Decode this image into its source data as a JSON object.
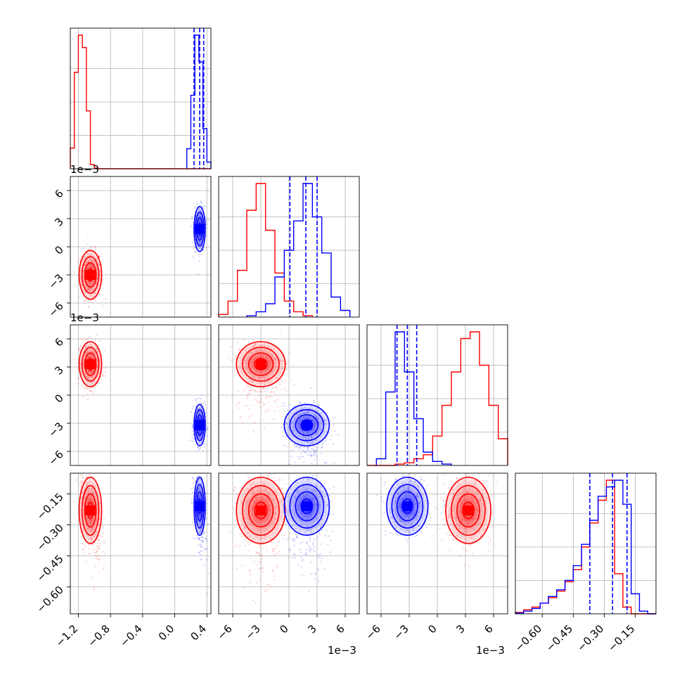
{
  "colors": {
    "series_a": "#ff0000",
    "series_b": "#0000ff",
    "grid": "#b0b0b0"
  },
  "offset_labels": {
    "row1_y": "1e−3",
    "row2_y": "1e−3",
    "col1_x": "1e−3",
    "col2_x": "1e−3"
  },
  "chart_data": {
    "type": "scatter",
    "subtype": "corner-plot",
    "title": "",
    "n_parameters": 4,
    "grid": true,
    "parameters": [
      {
        "index": 0,
        "range": [
          -1.3,
          0.45
        ],
        "ticks": [
          -1.2,
          -0.8,
          -0.4,
          0.0,
          0.4
        ],
        "tick_labels": [
          "−1.2",
          "−0.8",
          "−0.4",
          "0.0",
          "0.4"
        ],
        "label": ""
      },
      {
        "index": 1,
        "range": [
          -0.0075,
          0.0075
        ],
        "ticks": [
          -0.006,
          -0.003,
          0,
          0.003,
          0.006
        ],
        "tick_labels": [
          "−6",
          "−3",
          "0",
          "3",
          "6"
        ],
        "scale_label": "1e−3",
        "label": ""
      },
      {
        "index": 2,
        "range": [
          -0.0075,
          0.0075
        ],
        "ticks": [
          -0.006,
          -0.003,
          0,
          0.003,
          0.006
        ],
        "tick_labels": [
          "−6",
          "−3",
          "0",
          "3",
          "6"
        ],
        "scale_label": "1e−3",
        "label": ""
      },
      {
        "index": 3,
        "range": [
          -0.73,
          -0.05
        ],
        "ticks": [
          -0.6,
          -0.45,
          -0.3,
          -0.15
        ],
        "tick_labels": [
          "−0.60",
          "−0.45",
          "−0.30",
          "−0.15"
        ],
        "label": ""
      }
    ],
    "series": [
      {
        "color": "#ff0000",
        "means": [
          -1.05,
          -0.003,
          0.0033,
          -0.23
        ],
        "stds": [
          0.07,
          0.0013,
          0.0012,
          0.08
        ],
        "histograms": [
          {
            "bins": [
              -1.3,
              -1.25,
              -1.2,
              -1.15,
              -1.1,
              -1.05,
              -1.0,
              -0.95,
              -0.9,
              -0.85,
              -0.8,
              -0.75,
              -0.7,
              -0.65,
              0.45
            ],
            "counts": [
              0.15,
              0.7,
              0.97,
              0.88,
              0.42,
              0.03,
              0.005,
              0,
              0,
              0,
              0,
              0,
              0,
              0
            ],
            "note_bins": "edges"
          },
          {
            "bins": [
              -0.0075,
              -0.0065,
              -0.0055,
              -0.0045,
              -0.0035,
              -0.0025,
              -0.0015,
              -0.0005,
              0.0005,
              0.0015,
              0.0025
            ],
            "counts": [
              0.02,
              0.12,
              0.35,
              0.8,
              1.0,
              0.65,
              0.33,
              0.12,
              0.04,
              0.01
            ]
          },
          {
            "bins": [
              -0.0075,
              -0.0065,
              -0.0055,
              -0.0045,
              -0.0035,
              -0.0025,
              -0.0015,
              -0.0005,
              0.0005,
              0.0015,
              0.0025,
              0.0035,
              0.0045,
              0.0055,
              0.0065,
              0.0075
            ],
            "counts": [
              0,
              0,
              0,
              0.01,
              0.02,
              0.05,
              0.08,
              0.22,
              0.45,
              0.7,
              0.95,
              1.0,
              0.75,
              0.45,
              0.2
            ]
          },
          {
            "bins": [
              -0.73,
              -0.69,
              -0.65,
              -0.61,
              -0.57,
              -0.53,
              -0.49,
              -0.45,
              -0.41,
              -0.37,
              -0.33,
              -0.29,
              -0.25,
              -0.21,
              -0.17,
              -0.13,
              -0.09,
              -0.05
            ],
            "counts": [
              0.01,
              0.03,
              0.05,
              0.08,
              0.12,
              0.17,
              0.24,
              0.33,
              0.5,
              0.68,
              0.85,
              1.0,
              0.3,
              0.05,
              0,
              0,
              0
            ]
          }
        ]
      },
      {
        "color": "#0000ff",
        "means": [
          0.31,
          0.0019,
          -0.0032,
          -0.21
        ],
        "stds": [
          0.035,
          0.0012,
          0.0011,
          0.07
        ],
        "quantiles": [
          [
            0.24,
            0.31,
            0.36
          ],
          [
            0.0001,
            0.0018,
            0.003
          ],
          [
            -0.0043,
            -0.0032,
            -0.0022
          ],
          [
            -0.37,
            -0.26,
            -0.19
          ]
        ],
        "histograms": [
          {
            "bins": [
              0.15,
              0.2,
              0.25,
              0.3,
              0.35,
              0.4,
              0.45
            ],
            "counts": [
              0.15,
              0.55,
              1.0,
              0.8,
              0.3,
              0.05
            ]
          },
          {
            "bins": [
              -0.0045,
              -0.0035,
              -0.0025,
              -0.0015,
              -0.0005,
              0.0005,
              0.0015,
              0.0025,
              0.0035,
              0.0045,
              0.0055,
              0.0065
            ],
            "counts": [
              0.01,
              0.04,
              0.1,
              0.3,
              0.5,
              0.72,
              1.0,
              0.75,
              0.48,
              0.15,
              0.05
            ]
          },
          {
            "bins": [
              -0.0065,
              -0.0055,
              -0.0045,
              -0.0035,
              -0.0025,
              -0.0015,
              -0.0005,
              0.0005,
              0.0015
            ],
            "counts": [
              0.05,
              0.55,
              1.0,
              0.7,
              0.35,
              0.1,
              0.03,
              0.01
            ]
          },
          {
            "bins": [
              -0.73,
              -0.69,
              -0.65,
              -0.61,
              -0.57,
              -0.53,
              -0.49,
              -0.45,
              -0.41,
              -0.37,
              -0.33,
              -0.29,
              -0.25,
              -0.21,
              -0.17,
              -0.13,
              -0.09,
              -0.05
            ],
            "counts": [
              0.005,
              0.02,
              0.04,
              0.08,
              0.13,
              0.18,
              0.25,
              0.36,
              0.52,
              0.7,
              0.88,
              0.95,
              1.0,
              0.82,
              0.15,
              0.02,
              0
            ]
          }
        ]
      }
    ]
  }
}
